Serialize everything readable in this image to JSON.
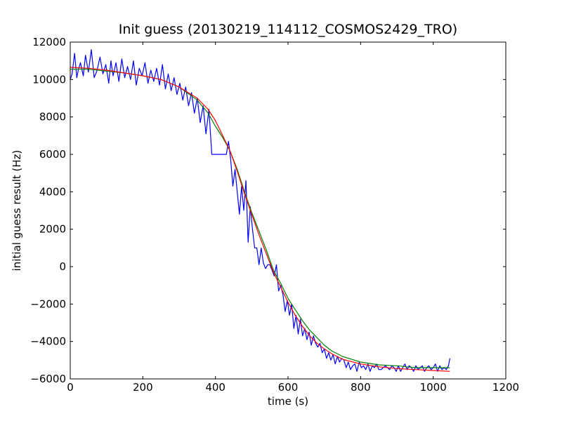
{
  "chart_data": {
    "type": "line",
    "title": "Init guess (20130219_114112_COSMOS2429_TRO)",
    "xlabel": "time (s)",
    "ylabel": "initial guess result (Hz)",
    "xlim": [
      0,
      1200
    ],
    "ylim": [
      -6000,
      12000
    ],
    "x_ticks": [
      0,
      200,
      400,
      600,
      800,
      1000,
      1200
    ],
    "y_ticks": [
      -6000,
      -4000,
      -2000,
      0,
      2000,
      4000,
      6000,
      8000,
      10000,
      12000
    ],
    "x_tick_labels": [
      "0",
      "200",
      "400",
      "600",
      "800",
      "1000",
      "1200"
    ],
    "y_tick_labels": [
      "−6000",
      "−4000",
      "−2000",
      "0",
      "2000",
      "4000",
      "6000",
      "8000",
      "10000",
      "12000"
    ],
    "grid": false,
    "legend": false,
    "series": [
      {
        "color": "#0000ff",
        "x": [
          0,
          5,
          12,
          18,
          22,
          28,
          36,
          42,
          50,
          58,
          66,
          74,
          82,
          90,
          98,
          106,
          112,
          118,
          126,
          134,
          142,
          150,
          158,
          166,
          174,
          182,
          190,
          198,
          206,
          214,
          222,
          230,
          238,
          246,
          254,
          262,
          270,
          278,
          286,
          294,
          302,
          310,
          318,
          326,
          334,
          342,
          350,
          358,
          366,
          374,
          382,
          390,
          398,
          406,
          412,
          418,
          424,
          430,
          436,
          442,
          448,
          454,
          460,
          466,
          472,
          478,
          484,
          490,
          496,
          502,
          508,
          514,
          520,
          526,
          532,
          538,
          544,
          550,
          556,
          562,
          568,
          574,
          580,
          586,
          592,
          598,
          604,
          610,
          616,
          622,
          628,
          634,
          640,
          646,
          652,
          658,
          664,
          670,
          676,
          682,
          688,
          694,
          700,
          706,
          712,
          718,
          724,
          730,
          736,
          742,
          748,
          754,
          760,
          766,
          772,
          778,
          784,
          790,
          796,
          802,
          808,
          814,
          820,
          826,
          832,
          838,
          844,
          850,
          856,
          862,
          868,
          874,
          880,
          886,
          892,
          898,
          904,
          910,
          916,
          922,
          928,
          934,
          940,
          946,
          952,
          958,
          964,
          970,
          976,
          982,
          988,
          994,
          1000,
          1006,
          1012,
          1018,
          1024,
          1030,
          1036,
          1042,
          1046
        ],
        "y": [
          10000,
          10300,
          11400,
          10100,
          10500,
          10900,
          10200,
          11300,
          10400,
          11600,
          10100,
          10500,
          11200,
          10300,
          10800,
          9800,
          11000,
          10200,
          10900,
          9900,
          11100,
          10100,
          10700,
          10000,
          11000,
          9700,
          10600,
          10200,
          10900,
          9800,
          10500,
          9900,
          10600,
          9700,
          10800,
          9500,
          10300,
          9400,
          10100,
          9200,
          9800,
          8900,
          9600,
          8600,
          9300,
          8200,
          9000,
          7700,
          8600,
          7100,
          8400,
          6000,
          6000,
          6000,
          6000,
          6000,
          6000,
          6000,
          6700,
          5700,
          4300,
          5200,
          4000,
          2800,
          4300,
          3000,
          4600,
          1300,
          3200,
          2000,
          1000,
          1000,
          100,
          1000,
          200,
          -100,
          100,
          100,
          -200,
          -500,
          100,
          -1300,
          -1000,
          -1500,
          -2400,
          -1800,
          -2600,
          -2000,
          -3300,
          -2600,
          -3600,
          -2800,
          -3700,
          -3300,
          -3900,
          -3500,
          -4200,
          -3700,
          -4100,
          -4300,
          -4100,
          -4600,
          -4400,
          -4900,
          -4600,
          -5000,
          -4700,
          -5200,
          -4800,
          -5100,
          -4900,
          -5000,
          -5400,
          -5100,
          -5500,
          -5300,
          -5200,
          -5600,
          -5100,
          -5400,
          -5300,
          -5500,
          -5200,
          -5600,
          -5300,
          -5400,
          -5200,
          -5500,
          -5500,
          -5400,
          -5300,
          -5400,
          -5500,
          -5300,
          -5400,
          -5600,
          -5300,
          -5600,
          -5400,
          -5200,
          -5500,
          -5300,
          -5400,
          -5600,
          -5300,
          -5500,
          -5400,
          -5300,
          -5600,
          -5400,
          -5300,
          -5500,
          -5400,
          -5200,
          -5600,
          -5300,
          -5500,
          -5400,
          -5500,
          -5300,
          -4900
        ]
      },
      {
        "color": "#008000",
        "x": [
          0,
          50,
          100,
          150,
          200,
          250,
          300,
          350,
          380,
          400,
          420,
          440,
          460,
          480,
          500,
          520,
          540,
          560,
          580,
          600,
          620,
          640,
          660,
          680,
          700,
          720,
          750,
          800,
          850,
          900,
          950,
          1000,
          1046
        ],
        "y": [
          10550,
          10550,
          10450,
          10350,
          10200,
          10000,
          9600,
          8900,
          8200,
          7500,
          6900,
          6200,
          5200,
          4000,
          2900,
          1900,
          900,
          -200,
          -900,
          -1700,
          -2300,
          -2900,
          -3400,
          -3800,
          -4200,
          -4500,
          -4800,
          -5100,
          -5250,
          -5300,
          -5400,
          -5400,
          -5400
        ]
      },
      {
        "color": "#ff0000",
        "x": [
          0,
          50,
          100,
          150,
          200,
          250,
          300,
          350,
          380,
          400,
          420,
          440,
          460,
          480,
          500,
          520,
          540,
          560,
          580,
          600,
          620,
          640,
          660,
          680,
          700,
          720,
          750,
          800,
          850,
          900,
          950,
          1000,
          1046
        ],
        "y": [
          10650,
          10600,
          10500,
          10350,
          10200,
          10000,
          9600,
          9000,
          8400,
          7800,
          7000,
          6200,
          5100,
          3900,
          2800,
          1700,
          700,
          -300,
          -1100,
          -1900,
          -2600,
          -3200,
          -3700,
          -4100,
          -4400,
          -4650,
          -4950,
          -5200,
          -5350,
          -5450,
          -5500,
          -5550,
          -5600
        ]
      }
    ]
  }
}
